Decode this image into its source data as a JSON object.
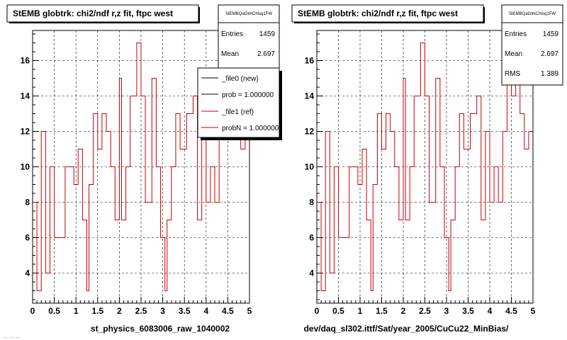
{
  "footer_text": "... ... ...",
  "colors": {
    "histogram": "#c80000",
    "frame": "#000000",
    "grid": "#000000",
    "background": "#ffffff"
  },
  "panels": [
    {
      "title": "StEMB globtrk: chi2/ndf r,z fit, ftpc west",
      "xlabel": "st_physics_6083006_raw_1040002",
      "stats": {
        "name": "StEMBQaGtrkChisq1FW",
        "rows": [
          {
            "label": "Entries",
            "value": "1459"
          },
          {
            "label": "Mean",
            "value": "2.697"
          }
        ]
      },
      "legend": [
        {
          "label": "_file0 (new)",
          "color": "#000000"
        },
        {
          "label": "prob = 1.000000",
          "color": "#000000"
        },
        {
          "label": "_file1 (ref)",
          "color": "#c80000"
        },
        {
          "label": "probN = 1.000000",
          "color": "#c80000"
        }
      ]
    },
    {
      "title": "StEMB globtrk: chi2/ndf r,z fit, ftpc west",
      "xlabel": "dev/daq_sl302.ittf/Sat/year_2005/CuCu22_MinBias/",
      "stats": {
        "name": "StEMBQaGtrkChisq1FW",
        "rows": [
          {
            "label": "Entries",
            "value": "1459"
          },
          {
            "label": "Mean",
            "value": "2.697"
          },
          {
            "label": "RMS",
            "value": "1.389"
          }
        ]
      },
      "legend": []
    }
  ],
  "chart_data": [
    {
      "type": "histogram-step",
      "title": "StEMB globtrk: chi2/ndf r,z fit, ftpc west",
      "xlabel": "st_physics_6083006_raw_1040002",
      "ylabel": "",
      "xlim": [
        0,
        5
      ],
      "ylim": [
        2.3,
        17.7
      ],
      "xticks": [
        "0",
        "0.5",
        "1",
        "1.5",
        "2",
        "2.5",
        "3",
        "3.5",
        "4",
        "4.5",
        "5"
      ],
      "yticks": [
        "4",
        "6",
        "8",
        "10",
        "12",
        "14",
        "16"
      ],
      "grid": true,
      "bin_edges": [
        0,
        0.1,
        0.2,
        0.3,
        0.4,
        0.5,
        0.75,
        0.95,
        1.05,
        1.15,
        1.25,
        1.3,
        1.4,
        1.5,
        1.6,
        1.7,
        1.8,
        1.9,
        2.0,
        2.05,
        2.15,
        2.25,
        2.4,
        2.5,
        2.6,
        2.75,
        2.85,
        2.95,
        3.05,
        3.1,
        3.2,
        3.3,
        3.4,
        3.55,
        3.7,
        3.8,
        3.9,
        4.0,
        4.1,
        4.2,
        4.3,
        4.4,
        4.5,
        4.6,
        4.7,
        4.8,
        4.9,
        5.0
      ],
      "series": [
        {
          "name": "_file1 (ref)",
          "values": [
            8,
            3,
            12,
            4,
            10,
            6,
            10,
            9,
            11,
            7,
            3,
            9,
            13,
            11,
            13,
            12,
            10,
            7,
            15,
            7,
            10,
            14,
            17,
            14,
            8,
            15,
            10,
            6,
            3,
            7,
            10,
            13,
            11,
            13,
            14,
            7,
            12,
            8,
            10,
            8,
            12,
            16,
            14,
            16,
            13,
            11,
            12
          ]
        }
      ]
    },
    {
      "type": "histogram-step",
      "title": "StEMB globtrk: chi2/ndf r,z fit, ftpc west",
      "xlabel": "dev/daq_sl302.ittf/Sat/year_2005/CuCu22_MinBias/",
      "ylabel": "",
      "xlim": [
        0,
        5
      ],
      "ylim": [
        2.3,
        17.7
      ],
      "xticks": [
        "0",
        "0.5",
        "1",
        "1.5",
        "2",
        "2.5",
        "3",
        "3.5",
        "4",
        "4.5",
        "5"
      ],
      "yticks": [
        "4",
        "6",
        "8",
        "10",
        "12",
        "14",
        "16"
      ],
      "grid": true,
      "bin_edges": [
        0,
        0.1,
        0.2,
        0.3,
        0.4,
        0.5,
        0.75,
        0.95,
        1.05,
        1.15,
        1.25,
        1.3,
        1.4,
        1.5,
        1.6,
        1.7,
        1.8,
        1.9,
        2.0,
        2.05,
        2.15,
        2.25,
        2.4,
        2.5,
        2.6,
        2.75,
        2.85,
        2.95,
        3.05,
        3.1,
        3.2,
        3.3,
        3.4,
        3.55,
        3.7,
        3.8,
        3.9,
        4.0,
        4.1,
        4.2,
        4.3,
        4.4,
        4.5,
        4.6,
        4.7,
        4.8,
        4.9,
        5.0
      ],
      "series": [
        {
          "name": "_file1 (ref)",
          "values": [
            8,
            3,
            12,
            4,
            10,
            6,
            10,
            9,
            11,
            7,
            3,
            9,
            13,
            11,
            13,
            12,
            10,
            7,
            15,
            7,
            10,
            14,
            17,
            14,
            8,
            15,
            10,
            6,
            3,
            7,
            10,
            13,
            11,
            13,
            14,
            7,
            12,
            8,
            10,
            8,
            12,
            16,
            14,
            16,
            13,
            11,
            12
          ]
        }
      ]
    }
  ]
}
